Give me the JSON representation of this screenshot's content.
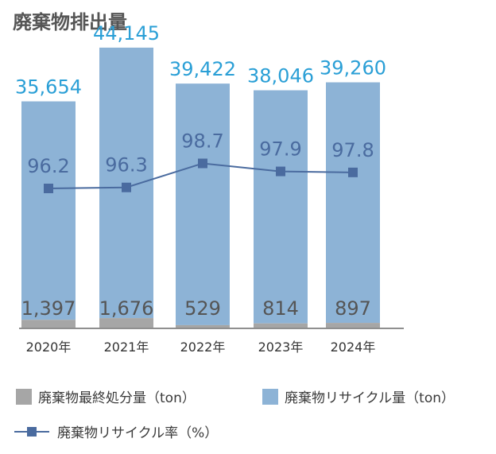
{
  "chart_data": {
    "type": "bar",
    "title": "廃棄物排出量",
    "categories": [
      "2020年",
      "2021年",
      "2022年",
      "2023年",
      "2024年"
    ],
    "series": [
      {
        "name": "廃棄物最終処分量（ton）",
        "values": [
          1397,
          1676,
          529,
          814,
          897
        ],
        "color": "#a6a6a6"
      },
      {
        "name": "廃棄物リサイクル量（ton）",
        "values": [
          35654,
          44145,
          39422,
          38046,
          39260
        ],
        "color": "#8db3d6"
      },
      {
        "name": "廃棄物リサイクル率（%）",
        "values": [
          96.2,
          96.3,
          98.7,
          97.9,
          97.8
        ],
        "color": "#4a6b9f",
        "type": "line"
      }
    ],
    "bar_labels": [
      "35,654",
      "44,145",
      "39,422",
      "38,046",
      "39,260"
    ],
    "disposal_labels": [
      "1,397",
      "1,676",
      "529",
      "814",
      "897"
    ],
    "rate_labels": [
      "96.2",
      "96.3",
      "98.7",
      "97.9",
      "97.8"
    ],
    "legend": [
      {
        "label": "廃棄物最終処分量（ton）",
        "kind": "square",
        "color": "#a6a6a6"
      },
      {
        "label": "廃棄物リサイクル量（ton）",
        "kind": "square",
        "color": "#8db3d6"
      },
      {
        "label": "廃棄物リサイクル率（%）",
        "kind": "line",
        "color": "#4a6b9f"
      }
    ],
    "legend_position": "bottom",
    "grid": false
  }
}
